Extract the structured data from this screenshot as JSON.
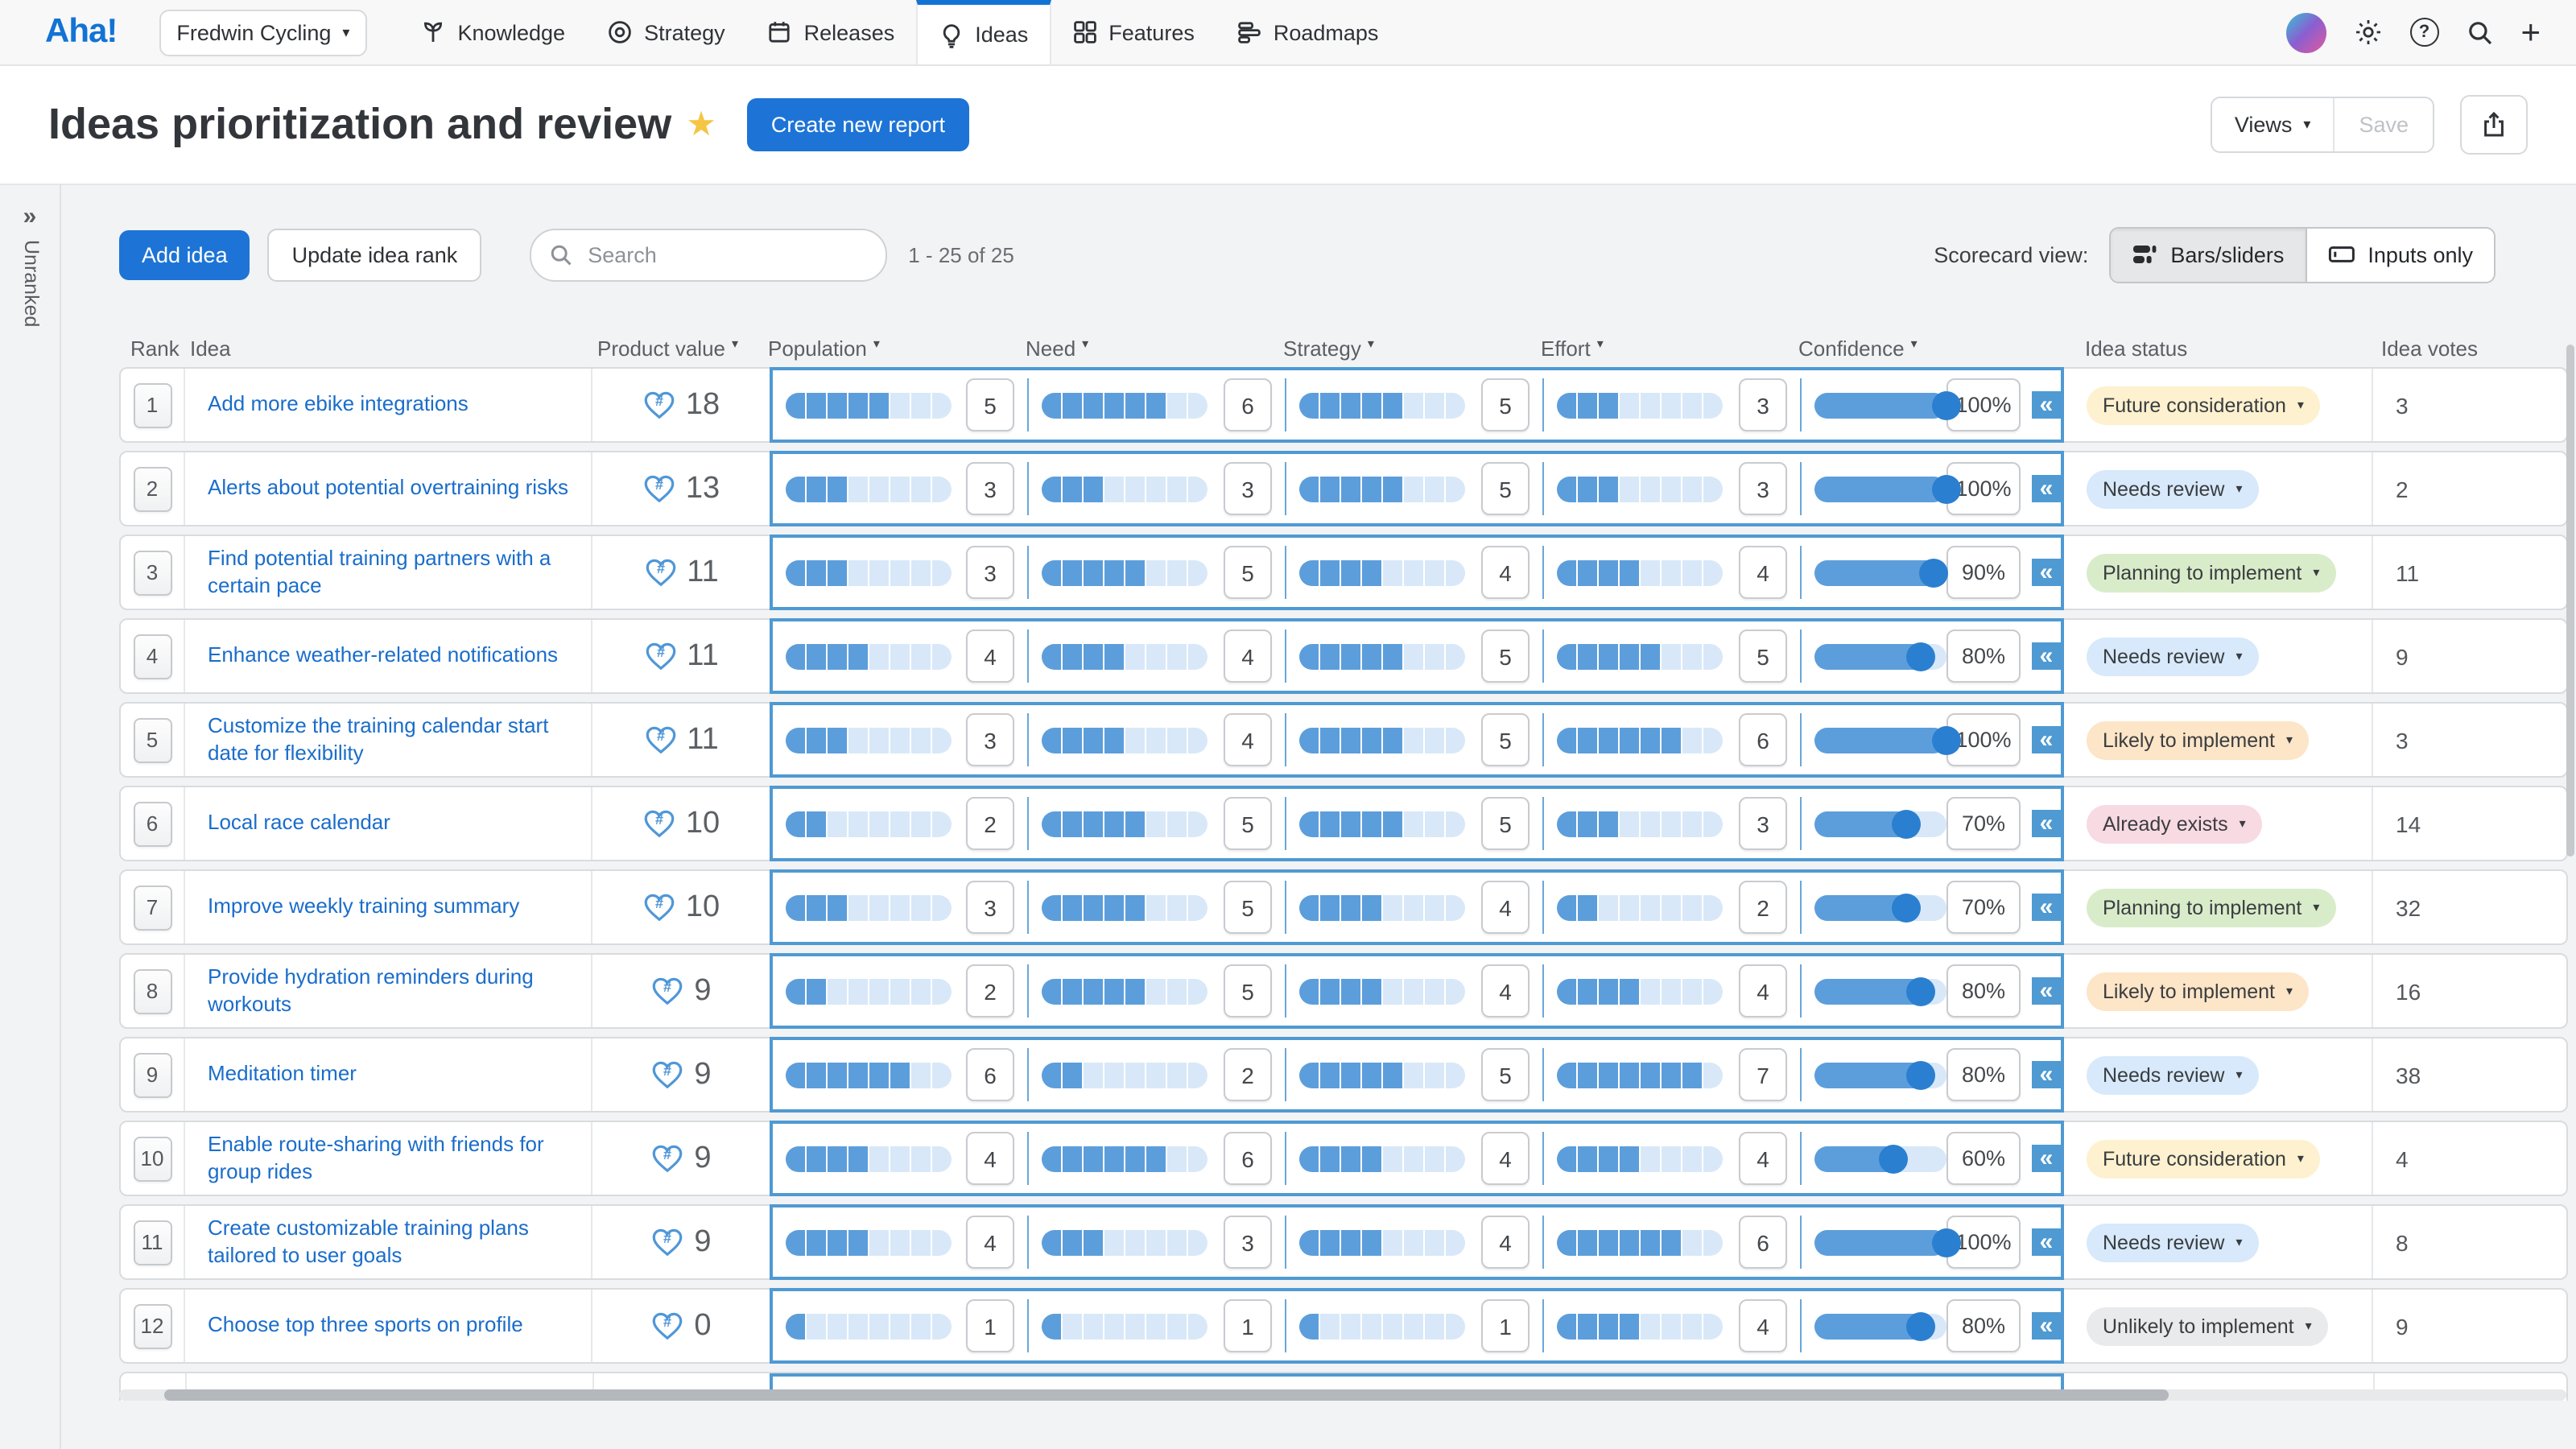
{
  "nav": {
    "logo": "Aha!",
    "product_selector": "Fredwin Cycling",
    "items": [
      {
        "label": "Knowledge",
        "icon": "knowledge-icon",
        "active": false
      },
      {
        "label": "Strategy",
        "icon": "strategy-icon",
        "active": false
      },
      {
        "label": "Releases",
        "icon": "releases-icon",
        "active": false
      },
      {
        "label": "Ideas",
        "icon": "ideas-icon",
        "active": true
      },
      {
        "label": "Features",
        "icon": "features-icon",
        "active": false
      },
      {
        "label": "Roadmaps",
        "icon": "roadmaps-icon",
        "active": false
      }
    ]
  },
  "header": {
    "title": "Ideas prioritization and review",
    "create_button": "Create new report",
    "views_button": "Views",
    "save_button": "Save"
  },
  "side_panel": {
    "expand_icon": "chevrons-right",
    "label": "Unranked"
  },
  "toolbar": {
    "add_idea": "Add idea",
    "update_rank": "Update idea rank",
    "search_placeholder": "Search",
    "result_count": "1 - 25 of 25",
    "scorecard_view_label": "Scorecard view:",
    "toggle_bars": "Bars/sliders",
    "toggle_inputs": "Inputs only"
  },
  "table": {
    "columns": [
      {
        "label": "Rank",
        "sortable": false
      },
      {
        "label": "Idea",
        "sortable": false
      },
      {
        "label": "Product value",
        "sortable": true
      },
      {
        "label": "Population",
        "sortable": true
      },
      {
        "label": "Need",
        "sortable": true
      },
      {
        "label": "Strategy",
        "sortable": true
      },
      {
        "label": "Effort",
        "sortable": true
      },
      {
        "label": "Confidence",
        "sortable": true
      },
      {
        "label": "Idea status",
        "sortable": false
      },
      {
        "label": "Idea votes",
        "sortable": false
      }
    ],
    "slider_max": 8,
    "rows": [
      {
        "rank": 1,
        "idea": "Add more ebike integrations",
        "value": 18,
        "population": 5,
        "need": 6,
        "strategy": 5,
        "effort": 3,
        "confidence": 100,
        "status": "Future consideration",
        "status_type": "future_consideration",
        "votes": 3
      },
      {
        "rank": 2,
        "idea": "Alerts about potential overtraining risks",
        "value": 13,
        "population": 3,
        "need": 3,
        "strategy": 5,
        "effort": 3,
        "confidence": 100,
        "status": "Needs review",
        "status_type": "needs_review",
        "votes": 2
      },
      {
        "rank": 3,
        "idea": "Find potential training partners with a certain pace",
        "value": 11,
        "population": 3,
        "need": 5,
        "strategy": 4,
        "effort": 4,
        "confidence": 90,
        "status": "Planning to implement",
        "status_type": "planning_to_implement",
        "votes": 11
      },
      {
        "rank": 4,
        "idea": "Enhance weather-related notifications",
        "value": 11,
        "population": 4,
        "need": 4,
        "strategy": 5,
        "effort": 5,
        "confidence": 80,
        "status": "Needs review",
        "status_type": "needs_review",
        "votes": 9
      },
      {
        "rank": 5,
        "idea": "Customize the training calendar start date for flexibility",
        "value": 11,
        "population": 3,
        "need": 4,
        "strategy": 5,
        "effort": 6,
        "confidence": 100,
        "status": "Likely to implement",
        "status_type": "likely_to_implement",
        "votes": 3
      },
      {
        "rank": 6,
        "idea": "Local race calendar",
        "value": 10,
        "population": 2,
        "need": 5,
        "strategy": 5,
        "effort": 3,
        "confidence": 70,
        "status": "Already exists",
        "status_type": "already_exists",
        "votes": 14
      },
      {
        "rank": 7,
        "idea": "Improve weekly training summary",
        "value": 10,
        "population": 3,
        "need": 5,
        "strategy": 4,
        "effort": 2,
        "confidence": 70,
        "status": "Planning to implement",
        "status_type": "planning_to_implement",
        "votes": 32
      },
      {
        "rank": 8,
        "idea": "Provide hydration reminders during workouts",
        "value": 9,
        "population": 2,
        "need": 5,
        "strategy": 4,
        "effort": 4,
        "confidence": 80,
        "status": "Likely to implement",
        "status_type": "likely_to_implement",
        "votes": 16
      },
      {
        "rank": 9,
        "idea": "Meditation timer",
        "value": 9,
        "population": 6,
        "need": 2,
        "strategy": 5,
        "effort": 7,
        "confidence": 80,
        "status": "Needs review",
        "status_type": "needs_review",
        "votes": 38
      },
      {
        "rank": 10,
        "idea": "Enable route-sharing with friends for group rides",
        "value": 9,
        "population": 4,
        "need": 6,
        "strategy": 4,
        "effort": 4,
        "confidence": 60,
        "status": "Future consideration",
        "status_type": "future_consideration",
        "votes": 4
      },
      {
        "rank": 11,
        "idea": "Create customizable training plans tailored to user goals",
        "value": 9,
        "population": 4,
        "need": 3,
        "strategy": 4,
        "effort": 6,
        "confidence": 100,
        "status": "Needs review",
        "status_type": "needs_review",
        "votes": 8
      },
      {
        "rank": 12,
        "idea": "Choose top three sports on profile",
        "value": 0,
        "population": 1,
        "need": 1,
        "strategy": 1,
        "effort": 4,
        "confidence": 80,
        "status": "Unlikely to implement",
        "status_type": "unlikely_to_implement",
        "votes": 9
      }
    ]
  },
  "colors": {
    "accent_blue": "#1d74d6",
    "slider_fill": "#5c9edb",
    "slider_empty": "#d8e8f8",
    "scorecard_border": "#4f9ad2",
    "status_colors": {
      "future_consideration": "#fdf1cf",
      "needs_review": "#d7e9fb",
      "planning_to_implement": "#d9ecca",
      "likely_to_implement": "#fde5c7",
      "already_exists": "#f8dae3",
      "unlikely_to_implement": "#e9eaec"
    }
  }
}
